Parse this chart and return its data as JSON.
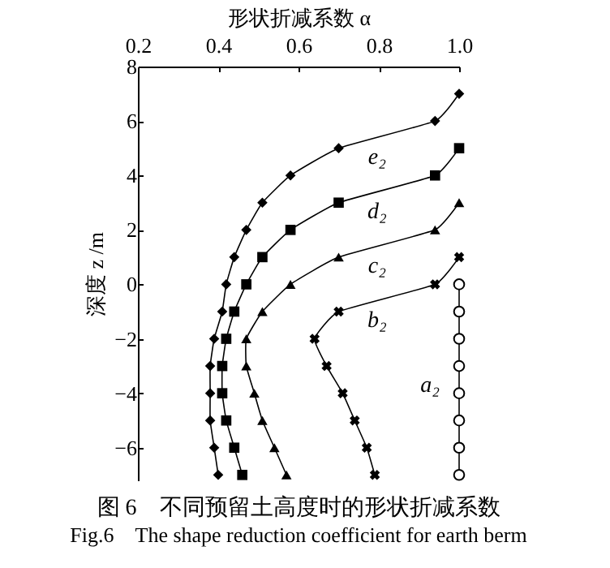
{
  "chart_data": {
    "type": "line",
    "title": "图 6　不同预留土高度时的形状折减系数",
    "subtitle": "Fig.6　The shape reduction coefficient for earth berm",
    "xlabel": "形状折减系数 α",
    "ylabel": "深度 z /m",
    "xlim": [
      0.2,
      1.0
    ],
    "xticks": [
      0.2,
      0.4,
      0.6,
      0.8,
      {
        "value": 1.0,
        "label": "1.0"
      }
    ],
    "ylim": [
      -7.2,
      8
    ],
    "yticks": [
      -6,
      -4,
      -2,
      0,
      2,
      4,
      6,
      8
    ],
    "grid": false,
    "series": [
      {
        "name": "a₂",
        "color": "#000000",
        "marker": "circle",
        "x": [
          1.0,
          1.0,
          1.0,
          1.0,
          1.0,
          1.0,
          1.0,
          1.0
        ],
        "values": [
          0,
          -1,
          -2,
          -3,
          -4,
          -5,
          -6,
          -7
        ]
      },
      {
        "name": "b₂",
        "color": "#000000",
        "marker": "cross",
        "x": [
          1.0,
          0.94,
          0.7,
          0.64,
          0.67,
          0.71,
          0.74,
          0.77,
          0.79
        ],
        "values": [
          1,
          0,
          -1,
          -2,
          -3,
          -4,
          -5,
          -6,
          -7
        ]
      },
      {
        "name": "c₂",
        "color": "#000000",
        "marker": "triangle",
        "x": [
          1.0,
          0.94,
          0.7,
          0.58,
          0.51,
          0.47,
          0.47,
          0.49,
          0.51,
          0.54,
          0.57
        ],
        "values": [
          3,
          2,
          1,
          0,
          -1,
          -2,
          -3,
          -4,
          -5,
          -6,
          -7
        ]
      },
      {
        "name": "d₂",
        "color": "#000000",
        "marker": "square",
        "x": [
          1.0,
          0.94,
          0.7,
          0.58,
          0.51,
          0.47,
          0.44,
          0.42,
          0.41,
          0.41,
          0.42,
          0.44,
          0.46
        ],
        "values": [
          5,
          4,
          3,
          2,
          1,
          0,
          -1,
          -2,
          -3,
          -4,
          -5,
          -6,
          -7
        ]
      },
      {
        "name": "e₂",
        "color": "#000000",
        "marker": "diamond",
        "x": [
          1.0,
          0.94,
          0.7,
          0.58,
          0.51,
          0.47,
          0.44,
          0.42,
          0.41,
          0.39,
          0.38,
          0.38,
          0.38,
          0.39,
          0.4
        ],
        "values": [
          7,
          6,
          5,
          4,
          3,
          2,
          1,
          0,
          -1,
          -2,
          -3,
          -4,
          -5,
          -6,
          -7
        ]
      }
    ]
  }
}
